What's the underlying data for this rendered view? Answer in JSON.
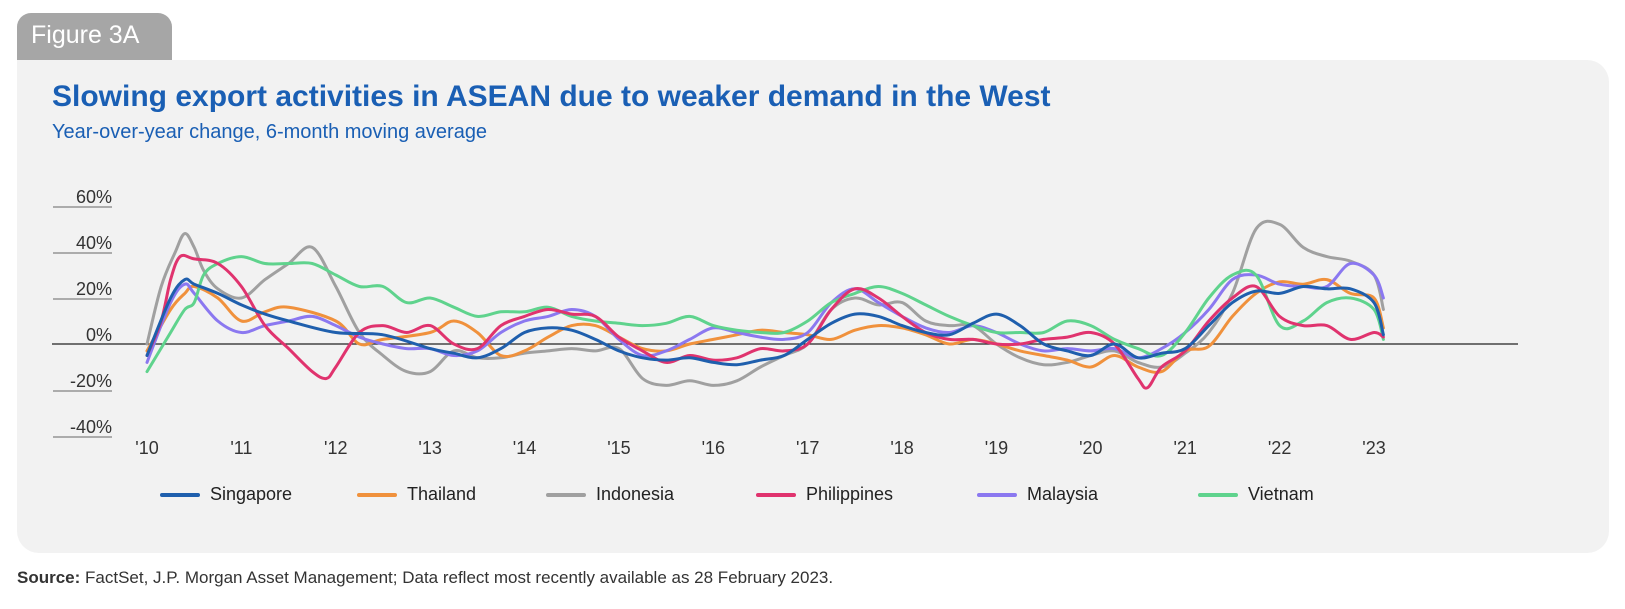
{
  "figure_tab": "Figure 3A",
  "title": "Slowing export activities in ASEAN due to weaker demand in the West",
  "subtitle": "Year-over-year change, 6-month moving average",
  "source_label": "Source:",
  "source_text": "FactSet, J.P. Morgan Asset Management; Data reflect most recently available as 28 February 2023.",
  "chart_data": {
    "type": "line",
    "title": "Slowing export activities in ASEAN due to weaker demand in the West",
    "subtitle": "Year-over-year change, 6-month moving average",
    "xlabel": "",
    "ylabel": "",
    "ylim": [
      -40,
      60
    ],
    "yticks": [
      60,
      40,
      20,
      0,
      -20,
      -40
    ],
    "ytick_labels": [
      "60%",
      "40%",
      "20%",
      "0%",
      "-20%",
      "-40%"
    ],
    "xlim": [
      2010.0,
      2024.0
    ],
    "xtick_values": [
      2010,
      2011,
      2012,
      2013,
      2014,
      2015,
      2016,
      2017,
      2018,
      2019,
      2020,
      2021,
      2022,
      2023
    ],
    "xtick_labels": [
      "'10",
      "'11",
      "'12",
      "'13",
      "'14",
      "'15",
      "'16",
      "'17",
      "'18",
      "'19",
      "'20",
      "'21",
      "'22",
      "'23"
    ],
    "grid": false,
    "legend_position": "bottom",
    "series": [
      {
        "name": "Singapore",
        "color": "#1f5fad",
        "x": [
          2010.0,
          2010.25,
          2010.4,
          2010.5,
          2010.75,
          2011.0,
          2011.25,
          2011.5,
          2012.0,
          2012.5,
          2013.0,
          2013.25,
          2013.5,
          2013.75,
          2014.0,
          2014.25,
          2014.5,
          2014.75,
          2015.0,
          2015.25,
          2015.5,
          2015.75,
          2016.0,
          2016.25,
          2016.5,
          2016.75,
          2017.0,
          2017.25,
          2017.5,
          2017.75,
          2018.0,
          2018.25,
          2018.5,
          2018.75,
          2019.0,
          2019.25,
          2019.5,
          2019.75,
          2020.0,
          2020.25,
          2020.5,
          2020.75,
          2021.0,
          2021.25,
          2021.5,
          2021.75,
          2022.0,
          2022.25,
          2022.5,
          2022.75,
          2023.0,
          2023.1
        ],
        "y": [
          -5,
          20,
          28,
          26,
          22,
          17,
          13,
          10,
          5,
          4,
          -2,
          -4,
          -6,
          -2,
          5,
          7,
          6,
          2,
          -3,
          -6,
          -7,
          -6,
          -8,
          -9,
          -7,
          -5,
          2,
          9,
          13,
          12,
          8,
          5,
          4,
          9,
          13,
          8,
          0,
          -3,
          -5,
          0,
          -6,
          -4,
          -2,
          8,
          18,
          23,
          22,
          25,
          24,
          24,
          18,
          4
        ]
      },
      {
        "name": "Thailand",
        "color": "#f0913c",
        "x": [
          2010.0,
          2010.25,
          2010.4,
          2010.5,
          2010.75,
          2011.0,
          2011.25,
          2011.5,
          2012.0,
          2012.25,
          2012.5,
          2013.0,
          2013.25,
          2013.5,
          2013.75,
          2014.0,
          2014.25,
          2014.5,
          2014.75,
          2015.0,
          2015.25,
          2015.5,
          2015.75,
          2016.0,
          2016.25,
          2016.5,
          2016.75,
          2017.0,
          2017.25,
          2017.5,
          2017.75,
          2018.0,
          2018.25,
          2018.5,
          2018.75,
          2019.0,
          2019.25,
          2019.5,
          2019.75,
          2020.0,
          2020.25,
          2020.5,
          2020.75,
          2021.0,
          2021.25,
          2021.5,
          2021.75,
          2022.0,
          2022.25,
          2022.5,
          2022.75,
          2023.0,
          2023.1
        ],
        "y": [
          -3,
          15,
          22,
          25,
          20,
          10,
          14,
          16,
          10,
          0,
          2,
          5,
          10,
          5,
          -5,
          -3,
          3,
          8,
          8,
          3,
          -2,
          -3,
          0,
          2,
          4,
          6,
          5,
          4,
          2,
          6,
          8,
          7,
          4,
          0,
          2,
          0,
          -3,
          -5,
          -7,
          -10,
          -5,
          -10,
          -12,
          -3,
          -1,
          12,
          22,
          27,
          26,
          28,
          22,
          20,
          7
        ]
      },
      {
        "name": "Indonesia",
        "color": "#a0a0a0",
        "x": [
          2010.0,
          2010.15,
          2010.3,
          2010.4,
          2010.5,
          2010.6,
          2010.75,
          2011.0,
          2011.25,
          2011.5,
          2011.75,
          2012.0,
          2012.25,
          2012.5,
          2012.75,
          2013.0,
          2013.25,
          2013.5,
          2013.75,
          2014.0,
          2014.25,
          2014.5,
          2014.75,
          2015.0,
          2015.25,
          2015.5,
          2015.75,
          2016.0,
          2016.25,
          2016.5,
          2016.75,
          2017.0,
          2017.25,
          2017.5,
          2017.75,
          2018.0,
          2018.25,
          2018.5,
          2018.75,
          2019.0,
          2019.25,
          2019.5,
          2019.75,
          2020.0,
          2020.25,
          2020.5,
          2020.75,
          2021.0,
          2021.25,
          2021.5,
          2021.75,
          2022.0,
          2022.25,
          2022.5,
          2022.75,
          2023.0,
          2023.1
        ],
        "y": [
          0,
          25,
          40,
          48,
          42,
          32,
          24,
          20,
          28,
          35,
          42,
          25,
          5,
          -5,
          -12,
          -12,
          -3,
          -6,
          -6,
          -4,
          -3,
          -2,
          -3,
          -2,
          -15,
          -18,
          -16,
          -18,
          -16,
          -10,
          -5,
          0,
          15,
          20,
          17,
          18,
          10,
          8,
          8,
          0,
          -6,
          -9,
          -8,
          -5,
          -3,
          -8,
          -10,
          -4,
          5,
          22,
          50,
          52,
          42,
          38,
          36,
          30,
          15
        ]
      },
      {
        "name": "Philippines",
        "color": "#e0336e",
        "x": [
          2010.0,
          2010.15,
          2010.25,
          2010.35,
          2010.5,
          2010.75,
          2011.0,
          2011.25,
          2011.5,
          2011.75,
          2011.9,
          2012.0,
          2012.25,
          2012.5,
          2012.75,
          2013.0,
          2013.25,
          2013.5,
          2013.75,
          2014.0,
          2014.25,
          2014.5,
          2014.75,
          2015.0,
          2015.25,
          2015.5,
          2015.75,
          2016.0,
          2016.25,
          2016.5,
          2016.75,
          2017.0,
          2017.25,
          2017.5,
          2017.75,
          2018.0,
          2018.25,
          2018.5,
          2018.75,
          2019.0,
          2019.25,
          2019.5,
          2019.75,
          2020.0,
          2020.25,
          2020.5,
          2020.6,
          2020.75,
          2021.0,
          2021.25,
          2021.5,
          2021.75,
          2022.0,
          2022.25,
          2022.5,
          2022.75,
          2023.0,
          2023.1
        ],
        "y": [
          -5,
          10,
          28,
          38,
          37,
          35,
          25,
          8,
          -2,
          -12,
          -15,
          -10,
          5,
          8,
          5,
          8,
          0,
          -2,
          8,
          12,
          15,
          13,
          12,
          3,
          -3,
          -8,
          -5,
          -7,
          -6,
          -2,
          -3,
          0,
          15,
          24,
          20,
          12,
          5,
          2,
          2,
          0,
          0,
          2,
          3,
          5,
          0,
          -15,
          -19,
          -10,
          -3,
          10,
          20,
          25,
          12,
          8,
          8,
          2,
          5,
          3
        ]
      },
      {
        "name": "Malaysia",
        "color": "#8b78f0",
        "x": [
          2010.0,
          2010.25,
          2010.4,
          2010.5,
          2010.75,
          2011.0,
          2011.25,
          2011.5,
          2011.75,
          2012.0,
          2012.25,
          2012.5,
          2012.75,
          2013.0,
          2013.25,
          2013.5,
          2013.75,
          2014.0,
          2014.25,
          2014.5,
          2014.75,
          2015.0,
          2015.25,
          2015.5,
          2015.75,
          2016.0,
          2016.25,
          2016.5,
          2016.75,
          2017.0,
          2017.25,
          2017.5,
          2017.75,
          2018.0,
          2018.25,
          2018.5,
          2018.75,
          2019.0,
          2019.25,
          2019.5,
          2019.75,
          2020.0,
          2020.25,
          2020.5,
          2020.75,
          2021.0,
          2021.25,
          2021.5,
          2021.75,
          2022.0,
          2022.25,
          2022.5,
          2022.75,
          2023.0,
          2023.1
        ],
        "y": [
          -8,
          18,
          26,
          22,
          10,
          5,
          8,
          10,
          12,
          8,
          3,
          0,
          -2,
          -2,
          -5,
          -3,
          5,
          10,
          12,
          15,
          12,
          2,
          -5,
          -3,
          2,
          7,
          5,
          3,
          2,
          5,
          18,
          24,
          18,
          12,
          7,
          5,
          8,
          5,
          0,
          -3,
          -2,
          -3,
          -2,
          -6,
          -2,
          5,
          15,
          28,
          30,
          26,
          25,
          25,
          35,
          30,
          20
        ]
      },
      {
        "name": "Vietnam",
        "color": "#5fd38d",
        "x": [
          2010.0,
          2010.25,
          2010.4,
          2010.5,
          2010.6,
          2010.75,
          2011.0,
          2011.25,
          2011.5,
          2011.75,
          2012.0,
          2012.25,
          2012.5,
          2012.75,
          2013.0,
          2013.25,
          2013.5,
          2013.75,
          2014.0,
          2014.25,
          2014.5,
          2014.75,
          2015.0,
          2015.25,
          2015.5,
          2015.75,
          2016.0,
          2016.25,
          2016.5,
          2016.75,
          2017.0,
          2017.25,
          2017.5,
          2017.75,
          2018.0,
          2018.25,
          2018.5,
          2018.75,
          2019.0,
          2019.25,
          2019.5,
          2019.75,
          2020.0,
          2020.25,
          2020.5,
          2020.75,
          2021.0,
          2021.25,
          2021.5,
          2021.75,
          2022.0,
          2022.25,
          2022.5,
          2022.75,
          2023.0,
          2023.1
        ],
        "y": [
          -12,
          5,
          15,
          18,
          30,
          35,
          38,
          35,
          35,
          35,
          30,
          25,
          25,
          18,
          20,
          16,
          12,
          14,
          14,
          16,
          12,
          10,
          9,
          8,
          9,
          12,
          8,
          6,
          5,
          5,
          10,
          18,
          22,
          25,
          22,
          17,
          12,
          8,
          5,
          5,
          5,
          10,
          8,
          2,
          -2,
          -5,
          5,
          20,
          30,
          30,
          8,
          10,
          18,
          20,
          15,
          2
        ]
      }
    ]
  },
  "legend": [
    {
      "label": "Singapore",
      "color": "#1f5fad"
    },
    {
      "label": "Thailand",
      "color": "#f0913c"
    },
    {
      "label": "Indonesia",
      "color": "#a0a0a0"
    },
    {
      "label": "Philippines",
      "color": "#e0336e"
    },
    {
      "label": "Malaysia",
      "color": "#8b78f0"
    },
    {
      "label": "Vietnam",
      "color": "#5fd38d"
    }
  ]
}
